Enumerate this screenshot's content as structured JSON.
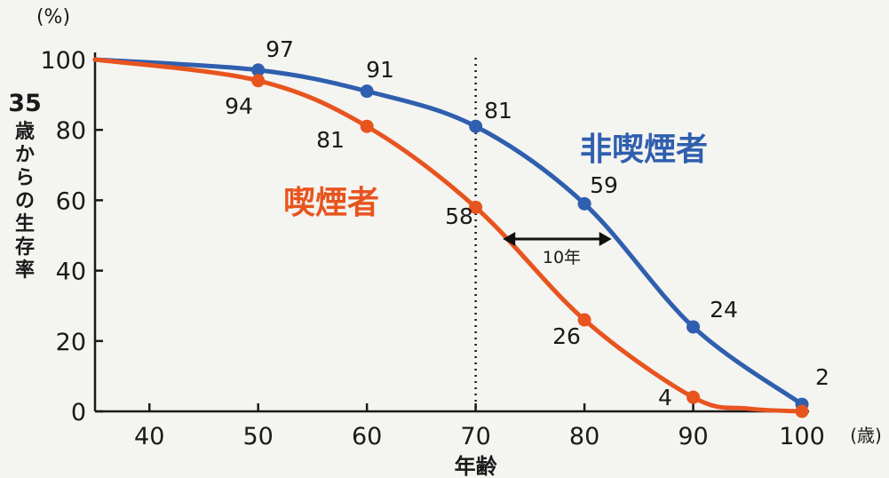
{
  "chart_data": {
    "type": "line",
    "title": "",
    "xlabel": "年齢",
    "xunit": "(歳)",
    "ylabel": "35歳からの生存率",
    "yunit": "(%)",
    "xlim": [
      35,
      100
    ],
    "ylim": [
      0,
      100
    ],
    "x_ticks": [
      40,
      50,
      60,
      70,
      80,
      90,
      100
    ],
    "y_ticks": [
      0,
      20,
      40,
      60,
      80,
      100
    ],
    "grid": false,
    "series": [
      {
        "name": "非喫煙者",
        "color": "#2f5fae",
        "x": [
          35,
          50,
          60,
          70,
          80,
          90,
          100
        ],
        "y": [
          100,
          97,
          91,
          81,
          59,
          24,
          2
        ],
        "marker_x": [
          50,
          60,
          70,
          80,
          90,
          100
        ],
        "marker_y": [
          97,
          91,
          81,
          59,
          24,
          2
        ],
        "labels": [
          "97",
          "91",
          "81",
          "59",
          "24",
          "2"
        ]
      },
      {
        "name": "喫煙者",
        "color": "#e8541e",
        "x": [
          35,
          50,
          60,
          70,
          80,
          90,
          95,
          100
        ],
        "y": [
          100,
          94,
          81,
          58,
          26,
          4,
          0.8,
          0
        ],
        "marker_x": [
          50,
          60,
          70,
          80,
          90,
          100
        ],
        "marker_y": [
          94,
          81,
          58,
          26,
          4,
          0
        ],
        "labels": [
          "94",
          "81",
          "58",
          "26",
          "4"
        ]
      }
    ],
    "reference_line": {
      "x": 70,
      "style": "dotted"
    },
    "annotation": {
      "text": "10年",
      "from_x": 72.5,
      "to_x": 82.5,
      "y": 49
    }
  }
}
